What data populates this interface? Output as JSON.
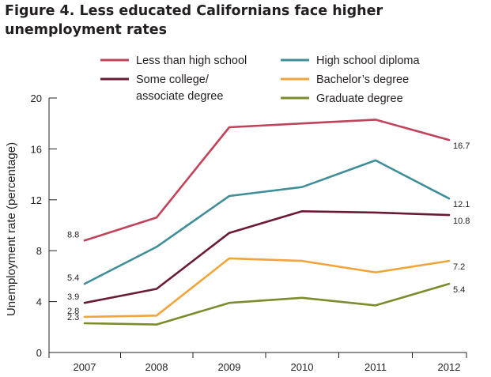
{
  "title_lines": [
    "Figure 4. Less educated Californians face higher",
    "unemployment rates"
  ],
  "chart_data": {
    "type": "line",
    "title": "Figure 4. Less educated Californians face higher unemployment rates",
    "xlabel": "",
    "ylabel": "Unemployment rate (percentage)",
    "x": [
      "2007",
      "2008",
      "2009",
      "2010",
      "2011",
      "2012"
    ],
    "ylim": [
      0,
      20
    ],
    "yticks": [
      "0",
      "4",
      "8",
      "12",
      "16",
      "20"
    ],
    "grid": false,
    "legend_position": "top",
    "series": [
      {
        "key": "lths",
        "name": "Less than high school",
        "color": "#c1435a",
        "values": [
          8.8,
          10.6,
          17.7,
          18.0,
          18.3,
          16.7
        ],
        "labels": [
          "8.8",
          "",
          "",
          "",
          "",
          "16.7"
        ]
      },
      {
        "key": "hsd",
        "name": "High school diploma",
        "color": "#3f8e98",
        "values": [
          5.4,
          8.3,
          12.3,
          13.0,
          15.1,
          12.1
        ],
        "labels": [
          "5.4",
          "",
          "",
          "",
          "",
          "12.1"
        ]
      },
      {
        "key": "scad",
        "name": "Some college/ associate degree",
        "name_lines": [
          "Some college/",
          "associate degree"
        ],
        "color": "#6a1a36",
        "values": [
          3.9,
          5.0,
          9.4,
          11.1,
          11.0,
          10.8
        ],
        "labels": [
          "3.9",
          "",
          "",
          "",
          "",
          "10.8"
        ]
      },
      {
        "key": "ba",
        "name": "Bachelor’s degree",
        "color": "#f1a43a",
        "values": [
          2.8,
          2.9,
          7.4,
          7.2,
          6.3,
          7.2
        ],
        "labels": [
          "2.8",
          "",
          "",
          "",
          "",
          "7.2"
        ]
      },
      {
        "key": "grad",
        "name": "Graduate degree",
        "color": "#7a8c2c",
        "values": [
          2.3,
          2.2,
          3.9,
          4.3,
          3.7,
          5.4
        ],
        "labels": [
          "2.3",
          "",
          "",
          "",
          "",
          "5.4"
        ]
      }
    ]
  }
}
